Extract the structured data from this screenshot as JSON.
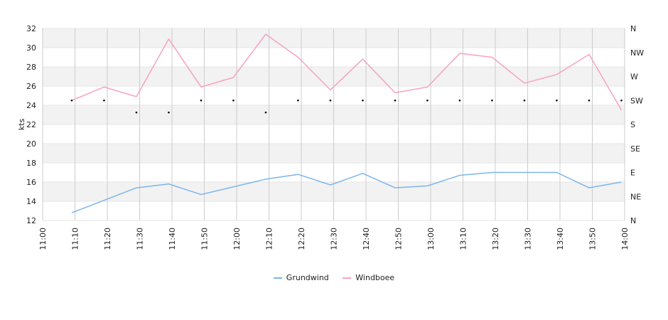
{
  "chart_data": {
    "type": "line",
    "ylabel": "kts",
    "ylim": [
      12,
      32
    ],
    "yticks": [
      12,
      14,
      16,
      18,
      20,
      22,
      24,
      26,
      28,
      30,
      32
    ],
    "x_ticks": [
      "11:00",
      "11:10",
      "11:20",
      "11:30",
      "11:40",
      "11:50",
      "12:00",
      "12:10",
      "12:20",
      "12:30",
      "12:40",
      "12:50",
      "13:00",
      "13:10",
      "13:20",
      "13:30",
      "13:40",
      "13:50",
      "14:00"
    ],
    "x_range": [
      "11:00",
      "14:00"
    ],
    "x": [
      "11:09",
      "11:19",
      "11:29",
      "11:39",
      "11:49",
      "11:59",
      "12:09",
      "12:19",
      "12:29",
      "12:39",
      "12:49",
      "12:59",
      "13:09",
      "13:19",
      "13:29",
      "13:39",
      "13:49",
      "13:59"
    ],
    "series": [
      {
        "name": "Grundwind",
        "color": "#7cb5ec",
        "values": [
          12.8,
          14.1,
          15.4,
          15.8,
          14.7,
          15.5,
          16.3,
          16.8,
          15.7,
          16.9,
          15.4,
          15.6,
          16.7,
          17.0,
          17.0,
          17.0,
          15.4,
          16.0
        ]
      },
      {
        "name": "Windboee",
        "color": "#f7a1c4",
        "values": [
          24.5,
          25.9,
          24.9,
          30.9,
          25.9,
          26.9,
          31.4,
          29.0,
          25.6,
          28.8,
          25.3,
          25.9,
          29.4,
          29.0,
          26.3,
          27.2,
          29.3,
          23.5
        ]
      }
    ],
    "direction_axis": {
      "labels": [
        "N",
        "NE",
        "E",
        "SE",
        "S",
        "SW",
        "W",
        "NW",
        "N"
      ],
      "markers": [
        {
          "time": "11:09",
          "direction": "SW"
        },
        {
          "time": "11:19",
          "direction": "SW"
        },
        {
          "time": "11:29",
          "direction": "SSW"
        },
        {
          "time": "11:39",
          "direction": "SSW"
        },
        {
          "time": "11:49",
          "direction": "SW"
        },
        {
          "time": "11:59",
          "direction": "SW"
        },
        {
          "time": "12:09",
          "direction": "SSW"
        },
        {
          "time": "12:19",
          "direction": "SW"
        },
        {
          "time": "12:29",
          "direction": "SW"
        },
        {
          "time": "12:39",
          "direction": "SW"
        },
        {
          "time": "12:49",
          "direction": "SW"
        },
        {
          "time": "12:59",
          "direction": "SW"
        },
        {
          "time": "13:09",
          "direction": "SW"
        },
        {
          "time": "13:19",
          "direction": "SW"
        },
        {
          "time": "13:29",
          "direction": "SW"
        },
        {
          "time": "13:39",
          "direction": "SW"
        },
        {
          "time": "13:49",
          "direction": "SW"
        },
        {
          "time": "13:59",
          "direction": "SW"
        }
      ]
    },
    "grid": true,
    "legend_position": "bottom-center"
  }
}
